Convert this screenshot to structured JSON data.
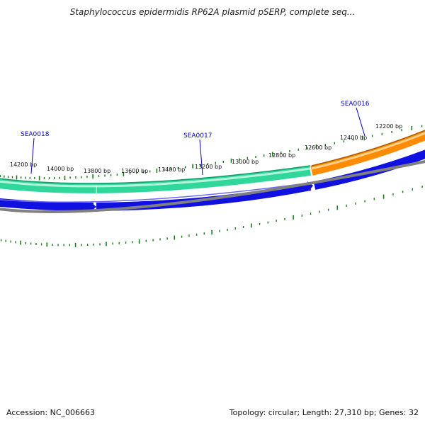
{
  "title": "Staphylococcus epidermidis RP62A plasmid pSERP, complete seq...",
  "footer": {
    "accession": "Accession: NC_006663",
    "summary": "Topology: circular; Length: 27,310 bp; Genes: 32"
  },
  "colors": {
    "gene_green": "#2fd89a",
    "gene_orange": "#ff8c00",
    "cds_blue": "#1010e0",
    "ruler_gray": "#808080",
    "tick_green": "#1a7a1a",
    "label_blue": "#0000cc"
  },
  "scale_labels": [
    "14200 bp",
    "14000 bp",
    "13800 bp",
    "13600 bp",
    "13400 bp",
    "13200 bp",
    "13000 bp",
    "12800 bp",
    "12600 bp",
    "12400 bp",
    "12200 bp"
  ],
  "gene_labels": [
    "SEA0018",
    "SEA0017",
    "SEA0016"
  ]
}
